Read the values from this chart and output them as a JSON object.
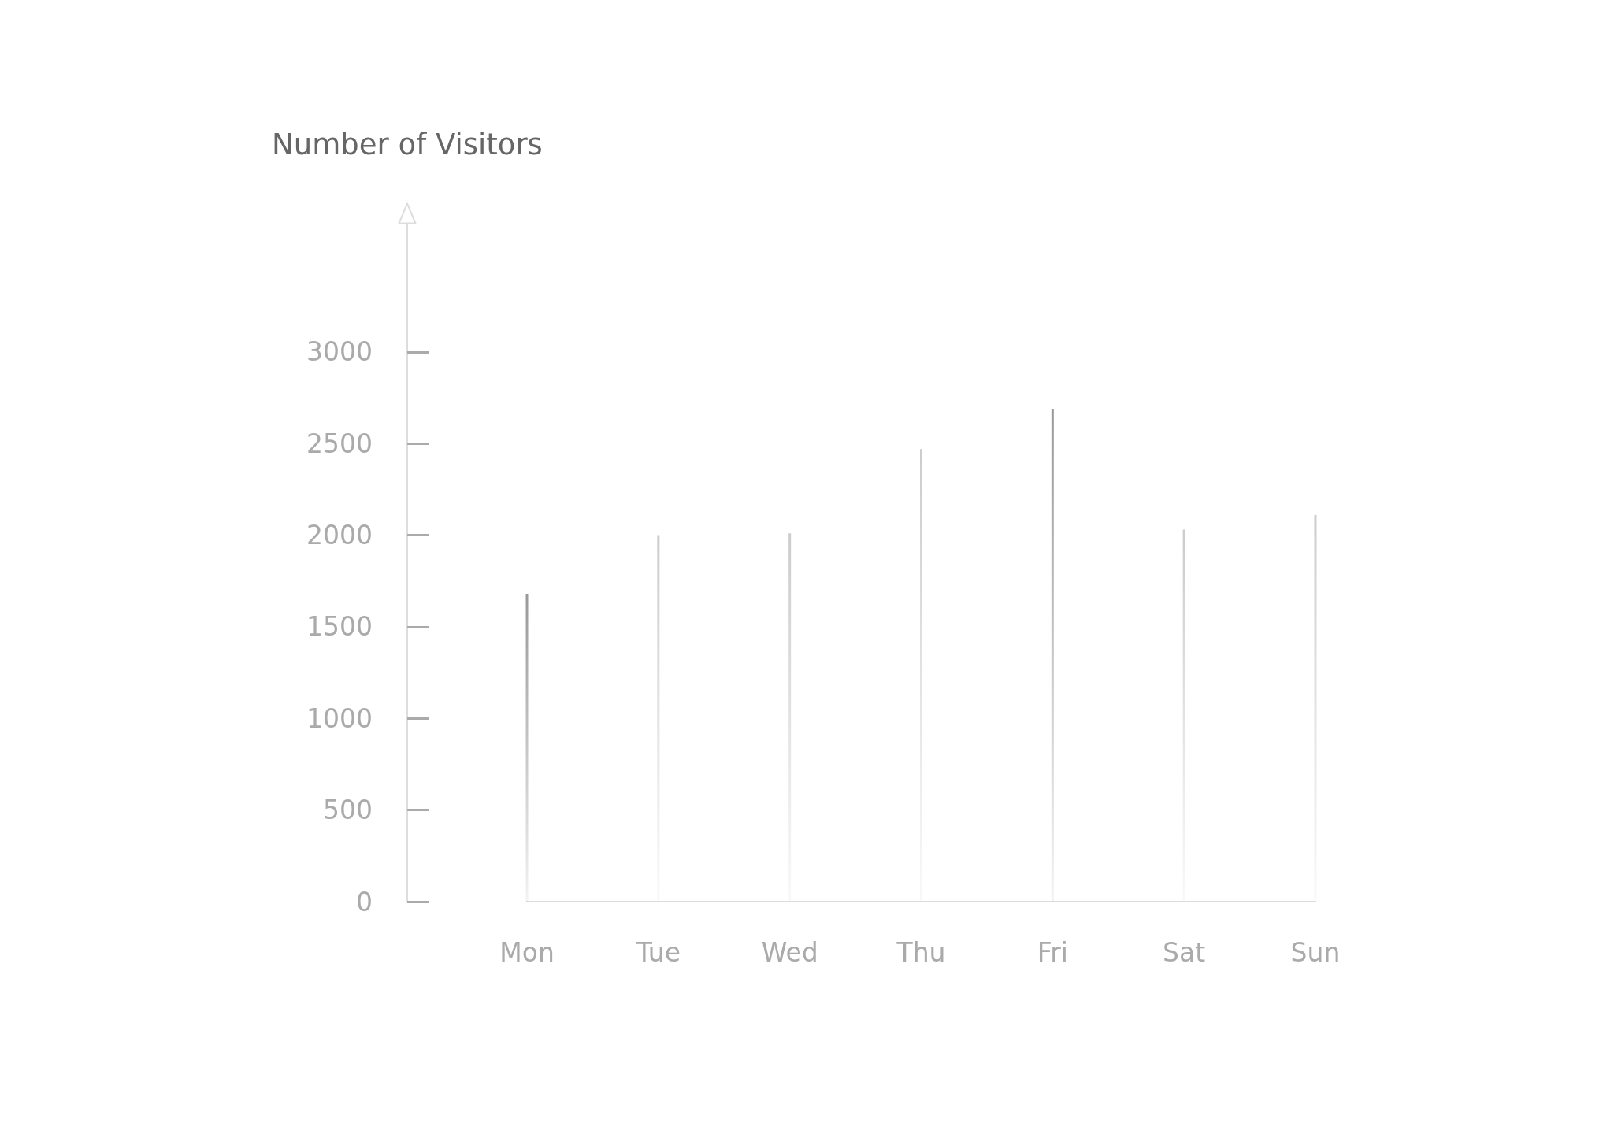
{
  "chart_data": {
    "type": "bar",
    "ylabel": "Number of Visitors",
    "categories": [
      "Mon",
      "Tue",
      "Wed",
      "Thu",
      "Fri",
      "Sat",
      "Sun"
    ],
    "values": [
      1680,
      2000,
      2010,
      2470,
      2690,
      2030,
      2110
    ],
    "colors": [
      "#999999",
      "#cccccc",
      "#cccccc",
      "#cccccc",
      "#999999",
      "#cccccc",
      "#cccccc"
    ],
    "ylim": [
      0,
      3700
    ],
    "yticks": [
      0,
      500,
      1000,
      1500,
      2000,
      2500,
      3000
    ],
    "grid": false
  }
}
